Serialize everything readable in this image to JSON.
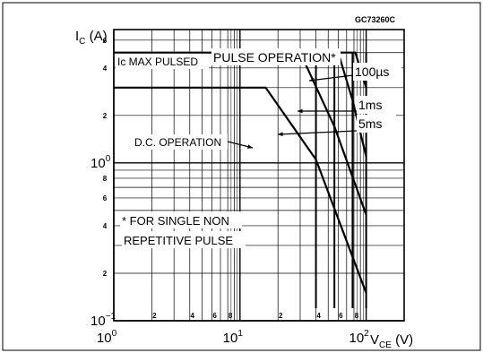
{
  "chart_data": {
    "type": "line",
    "code": "GC73260C",
    "title": "",
    "ylabel": {
      "main": "I",
      "sub": "C",
      "unit": " (A)"
    },
    "xlabel": {
      "main": "V",
      "sub": "CE",
      "unit": " (V)"
    },
    "x_scale": "log",
    "y_scale": "log",
    "xlim": [
      1,
      200
    ],
    "ylim": [
      0.1,
      7
    ],
    "grid": true,
    "x_major_ticks": [
      {
        "value": 1,
        "label": "10",
        "exp": "0"
      },
      {
        "value": 10,
        "label": "10",
        "exp": "1"
      },
      {
        "value": 100,
        "label": "10",
        "exp": "2"
      }
    ],
    "x_minor_ticks": [
      {
        "value": 2,
        "label": "2"
      },
      {
        "value": 4,
        "label": "4"
      },
      {
        "value": 6,
        "label": "6"
      },
      {
        "value": 8,
        "label": "8"
      },
      {
        "value": 20,
        "label": "2"
      },
      {
        "value": 40,
        "label": "4"
      },
      {
        "value": 60,
        "label": "6"
      },
      {
        "value": 80,
        "label": "8"
      },
      {
        "value": 200,
        "label": "2"
      },
      {
        "value": 400,
        "label": "4"
      },
      {
        "value": 600,
        "label": "6"
      },
      {
        "value": 800,
        "label": "8"
      }
    ],
    "y_major_ticks": [
      {
        "value": 0.1,
        "label": "10",
        "exp": "−1"
      },
      {
        "value": 1,
        "label": "10",
        "exp": "0"
      }
    ],
    "y_minor_ticks": [
      {
        "value": 0.2,
        "label": "2"
      },
      {
        "value": 0.4,
        "label": "4"
      },
      {
        "value": 0.6,
        "label": "6"
      },
      {
        "value": 0.8,
        "label": "8"
      },
      {
        "value": 2,
        "label": "2"
      },
      {
        "value": 4,
        "label": "4"
      },
      {
        "value": 6,
        "label": "6"
      }
    ],
    "series": [
      {
        "name": "D.C. OPERATION",
        "points": [
          [
            1,
            3
          ],
          [
            16,
            3
          ],
          [
            40,
            1.05
          ],
          [
            100,
            0.15
          ]
        ]
      },
      {
        "name": "5ms",
        "points": [
          [
            1,
            5
          ],
          [
            30,
            5
          ],
          [
            56,
            1.7
          ],
          [
            100,
            0.47
          ]
        ]
      },
      {
        "name": "1ms",
        "points": [
          [
            30,
            5
          ],
          [
            60,
            5
          ],
          [
            78,
            2.5
          ],
          [
            100,
            1.1
          ]
        ]
      },
      {
        "name": "100µs",
        "points": [
          [
            60,
            5
          ],
          [
            82,
            5
          ],
          [
            100,
            3
          ]
        ]
      }
    ],
    "verticals": [
      {
        "x": 40,
        "y_top": 5,
        "y_bottom": 0.12
      },
      {
        "x": 56,
        "y_top": 5,
        "y_bottom": 0.12
      },
      {
        "x": 78,
        "y_top": 5,
        "y_bottom": 0.12
      },
      {
        "x": 100,
        "y_top": 5,
        "y_bottom": 0.12
      }
    ],
    "annotations": {
      "ic_max": "Ic  MAX PULSED",
      "pulse_operation": "PULSE  OPERATION*",
      "us100": "100µs",
      "ms1": "1ms",
      "ms5": "5ms",
      "dc_operation": "D.C.  OPERATION",
      "footnote_line1": "*  FOR SINGLE NON",
      "footnote_line2": "REPETITIVE  PULSE"
    }
  }
}
